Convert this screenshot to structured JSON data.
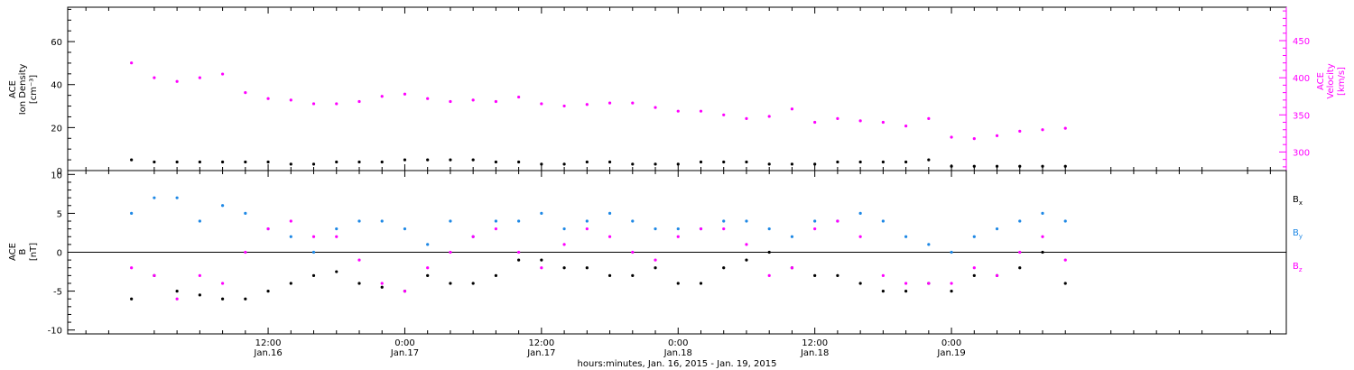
{
  "chart_data": [
    {
      "type": "scatter",
      "panel": "top",
      "ylabel_left": [
        "ACE",
        "Ion Density",
        "[cm⁻³]"
      ],
      "ylabel_right": [
        "ACE",
        "Velocity",
        "[km/s]"
      ],
      "ylim_left": [
        0,
        76
      ],
      "ylim_right": [
        275,
        495
      ],
      "yticks_left": [
        "0",
        "20",
        "40",
        "60"
      ],
      "yticks_right": [
        "300",
        "350",
        "400",
        "450"
      ],
      "series": [
        {
          "axis": "left",
          "color": "#000000",
          "x": [
            0,
            2,
            4,
            6,
            8,
            10,
            12,
            14,
            16,
            18,
            20,
            22,
            24,
            26,
            28,
            30,
            32,
            34,
            36,
            38,
            40,
            42,
            44,
            46,
            48,
            50,
            52,
            54,
            56,
            58,
            60,
            62,
            64,
            66,
            68,
            70,
            72,
            74,
            76,
            78,
            80,
            82
          ],
          "values": [
            5,
            4,
            4,
            4,
            4,
            4,
            4,
            3,
            3,
            4,
            4,
            4,
            5,
            5,
            5,
            5,
            4,
            4,
            3,
            3,
            4,
            4,
            3,
            3,
            3,
            4,
            4,
            4,
            3,
            3,
            3,
            4,
            4,
            4,
            4,
            5,
            2,
            2,
            2,
            2,
            2,
            2
          ]
        },
        {
          "axis": "right",
          "color": "#ff00ff",
          "x": [
            0,
            2,
            4,
            6,
            8,
            10,
            12,
            14,
            16,
            18,
            20,
            22,
            24,
            26,
            28,
            30,
            32,
            34,
            36,
            38,
            40,
            42,
            44,
            46,
            48,
            50,
            52,
            54,
            56,
            58,
            60,
            62,
            64,
            66,
            68,
            70,
            72,
            74,
            76,
            78,
            80,
            82
          ],
          "values": [
            420,
            400,
            395,
            400,
            405,
            380,
            372,
            370,
            365,
            365,
            368,
            375,
            378,
            372,
            368,
            370,
            368,
            374,
            365,
            362,
            364,
            366,
            366,
            360,
            355,
            355,
            350,
            345,
            348,
            358,
            340,
            345,
            342,
            340,
            335,
            345,
            320,
            318,
            322,
            328,
            330,
            332
          ]
        }
      ]
    },
    {
      "type": "scatter",
      "panel": "bottom",
      "ylabel_left": [
        "ACE",
        "B",
        "[nT]"
      ],
      "ylim": [
        -10.5,
        10.5
      ],
      "yticks": [
        "-10",
        "-5",
        "0",
        "5",
        "10"
      ],
      "legend": [
        "B",
        "B",
        "B"
      ],
      "legend_subscripts": [
        "x",
        "y",
        "z"
      ],
      "legend_colors": [
        "#000000",
        "#1e88e5",
        "#ff00ff"
      ],
      "legend_position": "right",
      "series": [
        {
          "color": "#000000",
          "x": [
            0,
            2,
            4,
            6,
            8,
            10,
            12,
            14,
            16,
            18,
            20,
            22,
            24,
            26,
            28,
            30,
            32,
            34,
            36,
            38,
            40,
            42,
            44,
            46,
            48,
            50,
            52,
            54,
            56,
            58,
            60,
            62,
            64,
            66,
            68,
            70,
            72,
            74,
            76,
            78,
            80,
            82
          ],
          "values": [
            -6,
            -3,
            -5,
            -5.5,
            -6,
            -6,
            -5,
            -4,
            -3,
            -2.5,
            -4,
            -4.5,
            -5,
            -3,
            -4,
            -4,
            -3,
            -1,
            -1,
            -2,
            -2,
            -3,
            -3,
            -2,
            -4,
            -4,
            -2,
            -1,
            0,
            -2,
            -3,
            -3,
            -4,
            -5,
            -5,
            -4,
            -5,
            -3,
            -3,
            -2,
            0,
            -4
          ]
        },
        {
          "color": "#1e88e5",
          "x": [
            0,
            2,
            4,
            6,
            8,
            10,
            12,
            14,
            16,
            18,
            20,
            22,
            24,
            26,
            28,
            30,
            32,
            34,
            36,
            38,
            40,
            42,
            44,
            46,
            48,
            50,
            52,
            54,
            56,
            58,
            60,
            62,
            64,
            66,
            68,
            70,
            72,
            74,
            76,
            78,
            80,
            82
          ],
          "values": [
            5,
            7,
            7,
            4,
            6,
            5,
            3,
            2,
            0,
            3,
            4,
            4,
            3,
            1,
            4,
            2,
            4,
            4,
            5,
            3,
            4,
            5,
            4,
            3,
            3,
            3,
            4,
            4,
            3,
            2,
            4,
            4,
            5,
            4,
            2,
            1,
            0,
            2,
            3,
            4,
            5,
            4
          ]
        },
        {
          "color": "#ff00ff",
          "x": [
            0,
            2,
            4,
            6,
            8,
            10,
            12,
            14,
            16,
            18,
            20,
            22,
            24,
            26,
            28,
            30,
            32,
            34,
            36,
            38,
            40,
            42,
            44,
            46,
            48,
            50,
            52,
            54,
            56,
            58,
            60,
            62,
            64,
            66,
            68,
            70,
            72,
            74,
            76,
            78,
            80,
            82
          ],
          "values": [
            -2,
            -3,
            -6,
            -3,
            -4,
            0,
            3,
            4,
            2,
            2,
            -1,
            -4,
            -5,
            -2,
            0,
            2,
            3,
            0,
            -2,
            1,
            3,
            2,
            0,
            -1,
            2,
            3,
            3,
            1,
            -3,
            -2,
            3,
            4,
            2,
            -3,
            -4,
            -4,
            -4,
            -2,
            -3,
            0,
            2,
            -1
          ]
        }
      ]
    }
  ],
  "x_axis": {
    "xlim": [
      -5.6,
      101.4
    ],
    "unit": "hours from Jan.16 0:00",
    "ticks": [
      {
        "x": 12,
        "label1": "12:00",
        "label2": "Jan.16"
      },
      {
        "x": 24,
        "label1": "0:00",
        "label2": "Jan.17"
      },
      {
        "x": 36,
        "label1": "12:00",
        "label2": "Jan.17"
      },
      {
        "x": 48,
        "label1": "0:00",
        "label2": "Jan.18"
      },
      {
        "x": 60,
        "label1": "12:00",
        "label2": "Jan.18"
      },
      {
        "x": 72,
        "label1": "0:00",
        "label2": "Jan.19"
      }
    ],
    "title": "hours:minutes, Jan. 16, 2015 - Jan. 19, 2015"
  }
}
